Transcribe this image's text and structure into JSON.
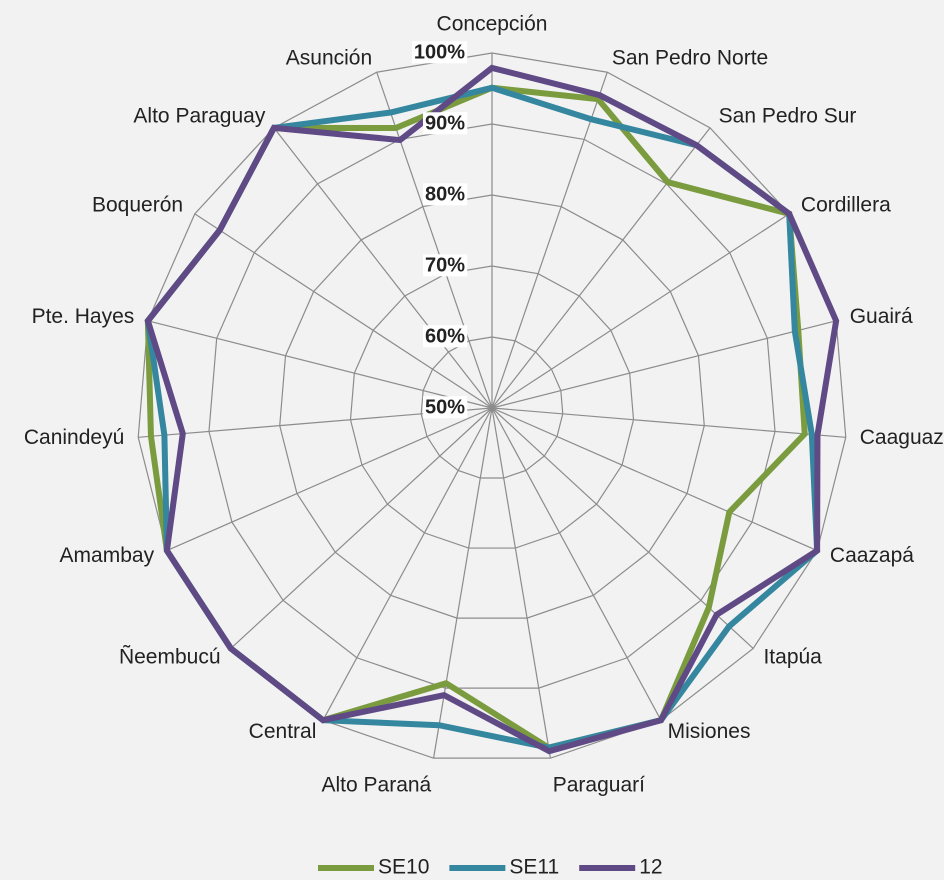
{
  "chart_data": {
    "type": "radar",
    "categories": [
      "Concepción",
      "San Pedro Norte",
      "San Pedro Sur",
      "Cordillera",
      "Guairá",
      "Caaguazú",
      "Caazapá",
      "Itapúa",
      "Misiones",
      "Paraguarí",
      "Alto Paraná",
      "Central",
      "Ñeembucú",
      "Amambay",
      "Canindeyú",
      "Pte. Hayes",
      "Boquerón",
      "Alto Paraguay",
      "Asunción"
    ],
    "series": [
      {
        "name": "SE10",
        "color": "#7b9b3f",
        "values": [
          95.1,
          96,
          90.3,
          100,
          94.5,
          94.2,
          86.5,
          91.5,
          100,
          98.5,
          89.3,
          100,
          100,
          100,
          98.2,
          100,
          95.8,
          100,
          91.7
        ]
      },
      {
        "name": "SE11",
        "color": "#35879f",
        "values": [
          95.1,
          93,
          96.9,
          100,
          94,
          95.2,
          100,
          95.4,
          100,
          98.5,
          95.3,
          100,
          100,
          100,
          96.3,
          100,
          95.8,
          100,
          94
        ]
      },
      {
        "name": "12",
        "color": "#5f4a86",
        "values": [
          97.9,
          96.6,
          96.9,
          100,
          100,
          96,
          100,
          93,
          100,
          99,
          91,
          100,
          100,
          100,
          93.7,
          100,
          95.8,
          100,
          89.9
        ]
      }
    ],
    "ylim": [
      50,
      100
    ],
    "yticks": [
      {
        "value": 50,
        "label": "50%"
      },
      {
        "value": 60,
        "label": "60%"
      },
      {
        "value": 70,
        "label": "70%"
      },
      {
        "value": 80,
        "label": "80%"
      },
      {
        "value": 90,
        "label": "90%"
      },
      {
        "value": 100,
        "label": "100%"
      }
    ],
    "grid": true,
    "legend": "bottom"
  }
}
